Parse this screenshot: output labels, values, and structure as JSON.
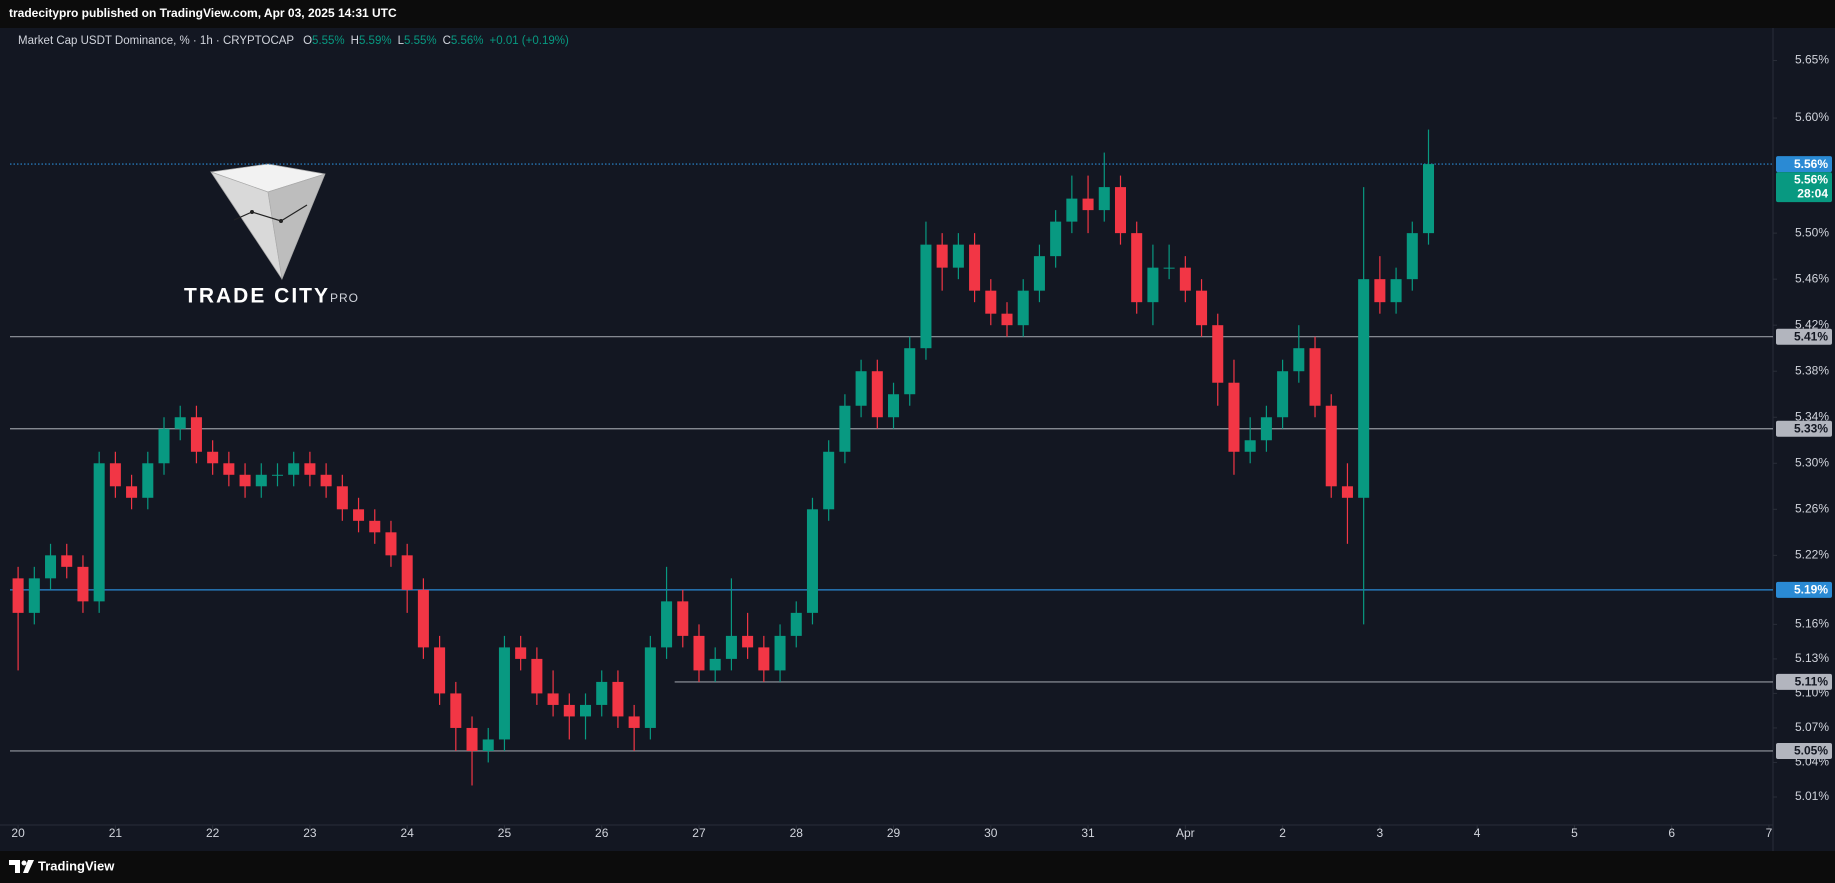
{
  "header": {
    "text": "tradecitypro published on TradingView.com, Apr 03, 2025 14:31 UTC"
  },
  "footer": {
    "brand": "TradingView"
  },
  "logo": {
    "name": "TRADE CITY",
    "suffix": "PRO"
  },
  "chart_data": {
    "type": "candlestick",
    "title": "Market Cap USDT Dominance, % · 1h · CRYPTOCAP",
    "ohlc_legend": [
      {
        "key": "O",
        "value": "5.55%"
      },
      {
        "key": "H",
        "value": "5.59%"
      },
      {
        "key": "L",
        "value": "5.55%"
      },
      {
        "key": "C",
        "value": "5.56%"
      }
    ],
    "change": "+0.01 (+0.19%)",
    "up_color": "#089981",
    "down_color": "#f23645",
    "grid": false,
    "xlim": [
      -2,
      433
    ],
    "xticks": [
      {
        "value": 0,
        "label": "20"
      },
      {
        "value": 24,
        "label": "21"
      },
      {
        "value": 48,
        "label": "22"
      },
      {
        "value": 72,
        "label": "23"
      },
      {
        "value": 96,
        "label": "24"
      },
      {
        "value": 120,
        "label": "25"
      },
      {
        "value": 144,
        "label": "26"
      },
      {
        "value": 168,
        "label": "27"
      },
      {
        "value": 192,
        "label": "28"
      },
      {
        "value": 216,
        "label": "29"
      },
      {
        "value": 240,
        "label": "30"
      },
      {
        "value": 264,
        "label": "31"
      },
      {
        "value": 288,
        "label": "Apr"
      },
      {
        "value": 312,
        "label": "2"
      },
      {
        "value": 336,
        "label": "3"
      },
      {
        "value": 360,
        "label": "4"
      },
      {
        "value": 384,
        "label": "5"
      },
      {
        "value": 408,
        "label": "6"
      },
      {
        "value": 432,
        "label": "7"
      }
    ],
    "ylim": [
      4.99,
      5.68
    ],
    "yticks": [
      {
        "value": 5.65,
        "label": "5.65%"
      },
      {
        "value": 5.6,
        "label": "5.60%"
      },
      {
        "value": 5.5,
        "label": "5.50%"
      },
      {
        "value": 5.46,
        "label": "5.46%"
      },
      {
        "value": 5.42,
        "label": "5.42%"
      },
      {
        "value": 5.38,
        "label": "5.38%"
      },
      {
        "value": 5.34,
        "label": "5.34%"
      },
      {
        "value": 5.3,
        "label": "5.30%"
      },
      {
        "value": 5.26,
        "label": "5.26%"
      },
      {
        "value": 5.22,
        "label": "5.22%"
      },
      {
        "value": 5.16,
        "label": "5.16%"
      },
      {
        "value": 5.13,
        "label": "5.13%"
      },
      {
        "value": 5.1,
        "label": "5.10%"
      },
      {
        "value": 5.07,
        "label": "5.07%"
      },
      {
        "value": 5.04,
        "label": "5.04%"
      },
      {
        "value": 5.01,
        "label": "5.01%"
      }
    ],
    "levels": [
      {
        "value": 5.56,
        "label": "5.56%",
        "color": "#2a8ad4",
        "style": "dotted"
      },
      {
        "value": 5.41,
        "label": "5.41%",
        "color": "#9598a1",
        "style": "solid"
      },
      {
        "value": 5.33,
        "label": "5.33%",
        "color": "#9598a1",
        "style": "solid"
      },
      {
        "value": 5.19,
        "label": "5.19%",
        "color": "#2a8ad4",
        "style": "solid"
      },
      {
        "value": 5.11,
        "label": "5.11%",
        "color": "#9598a1",
        "style": "solid",
        "from": 162
      },
      {
        "value": 5.05,
        "label": "5.05%",
        "color": "#9598a1",
        "style": "solid"
      }
    ],
    "last_price": {
      "value": 5.56,
      "label": "5.56%",
      "countdown": "28:04",
      "color": "#089981"
    },
    "x": [
      0,
      4,
      8,
      12,
      16,
      20,
      24,
      28,
      32,
      36,
      40,
      44,
      48,
      52,
      56,
      60,
      64,
      68,
      72,
      76,
      80,
      84,
      88,
      92,
      96,
      100,
      104,
      108,
      112,
      116,
      120,
      124,
      128,
      132,
      136,
      140,
      144,
      148,
      152,
      156,
      160,
      164,
      168,
      172,
      176,
      180,
      184,
      188,
      192,
      196,
      200,
      204,
      208,
      212,
      216,
      220,
      224,
      228,
      232,
      236,
      240,
      244,
      248,
      252,
      256,
      260,
      264,
      268,
      272,
      276,
      280,
      284,
      288,
      292,
      296,
      300,
      304,
      308,
      312,
      316,
      320,
      324,
      328,
      332,
      336,
      340,
      344,
      348
    ],
    "candles": [
      [
        5.2,
        5.21,
        5.12,
        5.17
      ],
      [
        5.17,
        5.21,
        5.16,
        5.2
      ],
      [
        5.2,
        5.23,
        5.19,
        5.22
      ],
      [
        5.22,
        5.23,
        5.2,
        5.21
      ],
      [
        5.21,
        5.22,
        5.17,
        5.18
      ],
      [
        5.18,
        5.31,
        5.17,
        5.3
      ],
      [
        5.3,
        5.31,
        5.27,
        5.28
      ],
      [
        5.28,
        5.29,
        5.26,
        5.27
      ],
      [
        5.27,
        5.31,
        5.26,
        5.3
      ],
      [
        5.3,
        5.34,
        5.29,
        5.33
      ],
      [
        5.33,
        5.35,
        5.32,
        5.34
      ],
      [
        5.34,
        5.35,
        5.3,
        5.31
      ],
      [
        5.31,
        5.32,
        5.29,
        5.3
      ],
      [
        5.3,
        5.31,
        5.28,
        5.29
      ],
      [
        5.29,
        5.3,
        5.27,
        5.28
      ],
      [
        5.28,
        5.3,
        5.27,
        5.29
      ],
      [
        5.29,
        5.3,
        5.28,
        5.29
      ],
      [
        5.29,
        5.31,
        5.28,
        5.3
      ],
      [
        5.3,
        5.31,
        5.28,
        5.29
      ],
      [
        5.29,
        5.3,
        5.27,
        5.28
      ],
      [
        5.28,
        5.29,
        5.25,
        5.26
      ],
      [
        5.26,
        5.27,
        5.24,
        5.25
      ],
      [
        5.25,
        5.26,
        5.23,
        5.24
      ],
      [
        5.24,
        5.25,
        5.21,
        5.22
      ],
      [
        5.22,
        5.23,
        5.17,
        5.19
      ],
      [
        5.19,
        5.2,
        5.13,
        5.14
      ],
      [
        5.14,
        5.15,
        5.09,
        5.1
      ],
      [
        5.1,
        5.11,
        5.05,
        5.07
      ],
      [
        5.07,
        5.08,
        5.02,
        5.05
      ],
      [
        5.05,
        5.07,
        5.04,
        5.06
      ],
      [
        5.06,
        5.15,
        5.05,
        5.14
      ],
      [
        5.14,
        5.15,
        5.12,
        5.13
      ],
      [
        5.13,
        5.14,
        5.09,
        5.1
      ],
      [
        5.1,
        5.12,
        5.08,
        5.09
      ],
      [
        5.09,
        5.1,
        5.06,
        5.08
      ],
      [
        5.08,
        5.1,
        5.06,
        5.09
      ],
      [
        5.09,
        5.12,
        5.08,
        5.11
      ],
      [
        5.11,
        5.12,
        5.07,
        5.08
      ],
      [
        5.08,
        5.09,
        5.05,
        5.07
      ],
      [
        5.07,
        5.15,
        5.06,
        5.14
      ],
      [
        5.14,
        5.21,
        5.13,
        5.18
      ],
      [
        5.18,
        5.19,
        5.14,
        5.15
      ],
      [
        5.15,
        5.16,
        5.11,
        5.12
      ],
      [
        5.12,
        5.14,
        5.11,
        5.13
      ],
      [
        5.13,
        5.2,
        5.12,
        5.15
      ],
      [
        5.15,
        5.17,
        5.13,
        5.14
      ],
      [
        5.14,
        5.15,
        5.11,
        5.12
      ],
      [
        5.12,
        5.16,
        5.11,
        5.15
      ],
      [
        5.15,
        5.18,
        5.14,
        5.17
      ],
      [
        5.17,
        5.27,
        5.16,
        5.26
      ],
      [
        5.26,
        5.32,
        5.25,
        5.31
      ],
      [
        5.31,
        5.36,
        5.3,
        5.35
      ],
      [
        5.35,
        5.39,
        5.34,
        5.38
      ],
      [
        5.38,
        5.39,
        5.33,
        5.34
      ],
      [
        5.34,
        5.37,
        5.33,
        5.36
      ],
      [
        5.36,
        5.41,
        5.35,
        5.4
      ],
      [
        5.4,
        5.51,
        5.39,
        5.49
      ],
      [
        5.49,
        5.5,
        5.45,
        5.47
      ],
      [
        5.47,
        5.5,
        5.46,
        5.49
      ],
      [
        5.49,
        5.5,
        5.44,
        5.45
      ],
      [
        5.45,
        5.46,
        5.42,
        5.43
      ],
      [
        5.43,
        5.44,
        5.41,
        5.42
      ],
      [
        5.42,
        5.46,
        5.41,
        5.45
      ],
      [
        5.45,
        5.49,
        5.44,
        5.48
      ],
      [
        5.48,
        5.52,
        5.47,
        5.51
      ],
      [
        5.51,
        5.55,
        5.5,
        5.53
      ],
      [
        5.53,
        5.55,
        5.5,
        5.52
      ],
      [
        5.52,
        5.57,
        5.51,
        5.54
      ],
      [
        5.54,
        5.55,
        5.49,
        5.5
      ],
      [
        5.5,
        5.51,
        5.43,
        5.44
      ],
      [
        5.44,
        5.49,
        5.42,
        5.47
      ],
      [
        5.47,
        5.49,
        5.46,
        5.47
      ],
      [
        5.47,
        5.48,
        5.44,
        5.45
      ],
      [
        5.45,
        5.46,
        5.41,
        5.42
      ],
      [
        5.42,
        5.43,
        5.35,
        5.37
      ],
      [
        5.37,
        5.39,
        5.29,
        5.31
      ],
      [
        5.31,
        5.34,
        5.3,
        5.32
      ],
      [
        5.32,
        5.35,
        5.31,
        5.34
      ],
      [
        5.34,
        5.39,
        5.33,
        5.38
      ],
      [
        5.38,
        5.42,
        5.37,
        5.4
      ],
      [
        5.4,
        5.41,
        5.34,
        5.35
      ],
      [
        5.35,
        5.36,
        5.27,
        5.28
      ],
      [
        5.28,
        5.3,
        5.23,
        5.27
      ],
      [
        5.27,
        5.54,
        5.16,
        5.46
      ],
      [
        5.46,
        5.48,
        5.43,
        5.44
      ],
      [
        5.44,
        5.47,
        5.43,
        5.46
      ],
      [
        5.46,
        5.51,
        5.45,
        5.5
      ],
      [
        5.5,
        5.59,
        5.49,
        5.56
      ]
    ]
  }
}
